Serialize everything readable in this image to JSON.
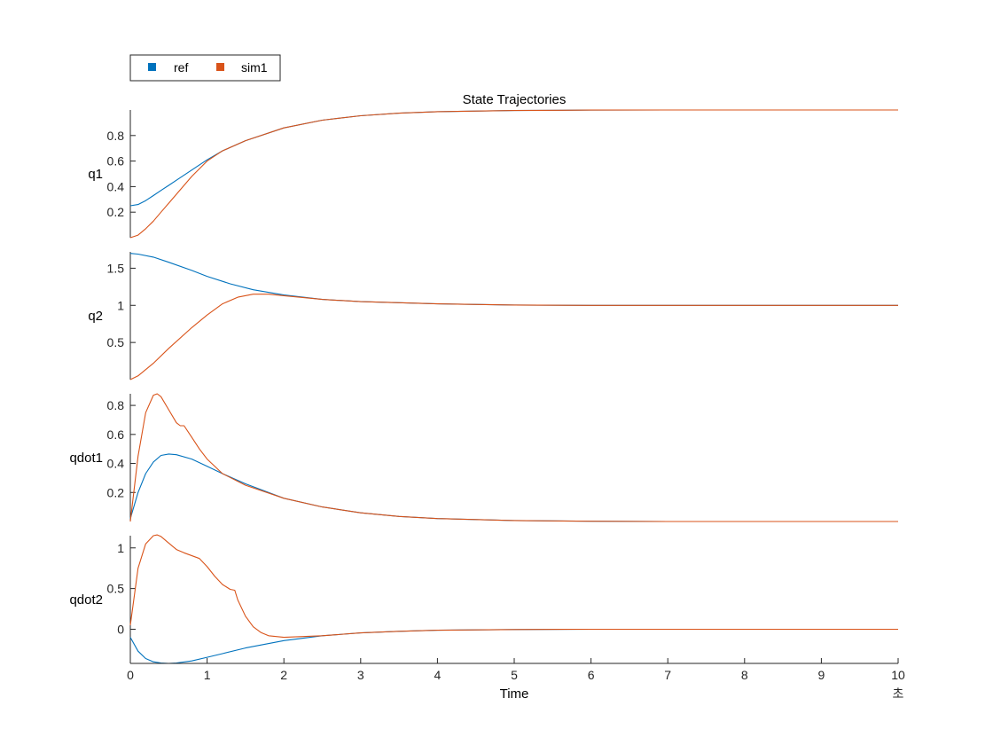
{
  "chart_data": {
    "type": "line",
    "title": "State Trajectories",
    "xlabel": "Time",
    "x_unit": "초",
    "xlim": [
      0,
      10
    ],
    "xticks": [
      "0",
      "1",
      "2",
      "3",
      "4",
      "5",
      "6",
      "7",
      "8",
      "9",
      "10"
    ],
    "legend": {
      "placement": "top-left",
      "entries": [
        {
          "name": "ref",
          "color": "#0072BD"
        },
        {
          "name": "sim1",
          "color": "#D95319"
        }
      ]
    },
    "subplots": [
      {
        "ylabel": "q1",
        "ylim": [
          0.0,
          1.0
        ],
        "yticks": [
          0.2,
          0.4,
          0.6,
          0.8
        ],
        "ytick_labels": [
          "0.2",
          "0.4",
          "0.6",
          "0.8"
        ],
        "series": [
          {
            "name": "ref",
            "x": [
              0,
              0.1,
              0.2,
              0.3,
              0.4,
              0.5,
              0.6,
              0.8,
              1,
              1.2,
              1.5,
              2,
              2.5,
              3,
              3.5,
              4,
              5,
              6,
              7,
              8,
              9,
              10
            ],
            "values": [
              0.25,
              0.26,
              0.29,
              0.33,
              0.37,
              0.41,
              0.45,
              0.53,
              0.61,
              0.68,
              0.76,
              0.86,
              0.92,
              0.955,
              0.975,
              0.987,
              0.996,
              0.999,
              1.0,
              1.0,
              1.0,
              1.0
            ]
          },
          {
            "name": "sim1",
            "x": [
              0,
              0.1,
              0.2,
              0.3,
              0.4,
              0.5,
              0.6,
              0.8,
              1,
              1.2,
              1.5,
              2,
              2.5,
              3,
              3.5,
              4,
              5,
              6,
              7,
              8,
              9,
              10
            ],
            "values": [
              0.0,
              0.02,
              0.07,
              0.13,
              0.2,
              0.27,
              0.34,
              0.48,
              0.6,
              0.68,
              0.76,
              0.86,
              0.92,
              0.955,
              0.975,
              0.987,
              0.996,
              0.999,
              1.0,
              1.0,
              1.0,
              1.0
            ]
          }
        ]
      },
      {
        "ylabel": "q2",
        "ylim": [
          0.0,
          1.72
        ],
        "yticks": [
          0.5,
          1.0,
          1.5
        ],
        "ytick_labels": [
          "0.5",
          "1",
          "1.5"
        ],
        "series": [
          {
            "name": "ref",
            "x": [
              0,
              0.1,
              0.3,
              0.5,
              0.8,
              1,
              1.3,
              1.6,
              2,
              2.5,
              3,
              4,
              5,
              6,
              8,
              10
            ],
            "values": [
              1.7,
              1.69,
              1.65,
              1.58,
              1.47,
              1.39,
              1.29,
              1.21,
              1.14,
              1.08,
              1.05,
              1.02,
              1.005,
              1.0,
              1.0,
              1.0
            ]
          },
          {
            "name": "sim1",
            "x": [
              0,
              0.1,
              0.3,
              0.5,
              0.8,
              1,
              1.2,
              1.4,
              1.6,
              1.8,
              2,
              2.5,
              3,
              4,
              5,
              6,
              8,
              10
            ],
            "values": [
              0.0,
              0.05,
              0.22,
              0.42,
              0.7,
              0.87,
              1.02,
              1.11,
              1.15,
              1.15,
              1.13,
              1.08,
              1.05,
              1.02,
              1.005,
              1.0,
              1.0,
              1.0
            ]
          }
        ]
      },
      {
        "ylabel": "qdot1",
        "ylim": [
          0.0,
          0.88
        ],
        "yticks": [
          0.2,
          0.4,
          0.6,
          0.8
        ],
        "ytick_labels": [
          "0.2",
          "0.4",
          "0.6",
          "0.8"
        ],
        "series": [
          {
            "name": "ref",
            "x": [
              0,
              0.1,
              0.2,
              0.3,
              0.4,
              0.5,
              0.6,
              0.8,
              1,
              1.2,
              1.5,
              2,
              2.5,
              3,
              3.5,
              4,
              5,
              6,
              7,
              8,
              10
            ],
            "values": [
              0.02,
              0.2,
              0.33,
              0.41,
              0.455,
              0.465,
              0.46,
              0.43,
              0.38,
              0.33,
              0.26,
              0.16,
              0.1,
              0.06,
              0.035,
              0.02,
              0.007,
              0.002,
              0.0,
              0.0,
              0.0
            ]
          },
          {
            "name": "sim1",
            "x": [
              0,
              0.1,
              0.2,
              0.3,
              0.35,
              0.4,
              0.5,
              0.6,
              0.65,
              0.7,
              0.8,
              0.9,
              1,
              1.2,
              1.5,
              2,
              2.5,
              3,
              3.5,
              4,
              5,
              6,
              7,
              8,
              10
            ],
            "values": [
              0.0,
              0.45,
              0.75,
              0.87,
              0.88,
              0.86,
              0.77,
              0.68,
              0.66,
              0.66,
              0.58,
              0.5,
              0.43,
              0.33,
              0.25,
              0.16,
              0.1,
              0.06,
              0.035,
              0.02,
              0.007,
              0.002,
              0.0,
              0.0,
              0.0
            ]
          }
        ]
      },
      {
        "ylabel": "qdot2",
        "ylim": [
          -0.42,
          1.15
        ],
        "yticks": [
          0.0,
          0.5,
          1.0
        ],
        "ytick_labels": [
          "0",
          "0.5",
          "1"
        ],
        "series": [
          {
            "name": "ref",
            "x": [
              0,
              0.1,
              0.2,
              0.3,
              0.4,
              0.5,
              0.6,
              0.8,
              1,
              1.2,
              1.5,
              2,
              2.5,
              3,
              3.5,
              4,
              5,
              6,
              7,
              8,
              10
            ],
            "values": [
              -0.1,
              -0.27,
              -0.36,
              -0.4,
              -0.415,
              -0.42,
              -0.415,
              -0.39,
              -0.345,
              -0.3,
              -0.23,
              -0.14,
              -0.08,
              -0.045,
              -0.025,
              -0.012,
              -0.003,
              0.0,
              0.0,
              0.0,
              0.0
            ]
          },
          {
            "name": "sim1",
            "x": [
              0,
              0.1,
              0.2,
              0.3,
              0.35,
              0.4,
              0.5,
              0.6,
              0.7,
              0.9,
              1,
              1.1,
              1.2,
              1.3,
              1.36,
              1.4,
              1.5,
              1.6,
              1.7,
              1.8,
              2,
              2.5,
              3,
              3.5,
              4,
              5,
              6,
              7,
              8,
              10
            ],
            "values": [
              0.05,
              0.75,
              1.05,
              1.15,
              1.16,
              1.14,
              1.06,
              0.98,
              0.94,
              0.87,
              0.77,
              0.65,
              0.55,
              0.49,
              0.48,
              0.36,
              0.16,
              0.03,
              -0.04,
              -0.08,
              -0.1,
              -0.08,
              -0.045,
              -0.025,
              -0.012,
              -0.003,
              0.0,
              0.0,
              0.0,
              0.0
            ]
          }
        ]
      }
    ]
  }
}
